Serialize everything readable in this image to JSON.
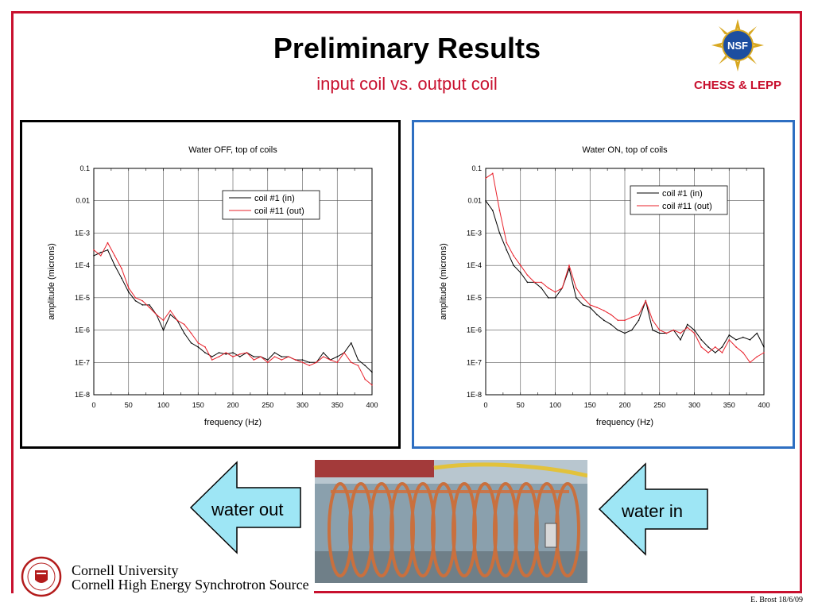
{
  "slide": {
    "title": "Preliminary Results",
    "subtitle": "input coil vs. output coil",
    "org": "CHESS & LEPP",
    "nsf_logo_text": "NSF",
    "footer": "E. Brost 18/6/09",
    "university_line1": "Cornell University",
    "university_line2": "Cornell High Energy Synchrotron Source",
    "seal_text": "CORNELL UNIVERSITY",
    "water_out_label": "water out",
    "water_in_label": "water in",
    "colors": {
      "accent_red": "#c8102e",
      "panel_blue_border": "#2e6fc2",
      "arrow_fill": "#9ee6f5",
      "series_black": "#000000",
      "series_red": "#e8202a"
    },
    "photo": {
      "description_icon": "copper-coil-photo"
    }
  },
  "chart_data": [
    {
      "type": "line",
      "title": "Water OFF, top of coils",
      "xlabel": "frequency (Hz)",
      "ylabel": "amplitude (microns)",
      "xlim": [
        0,
        400
      ],
      "ylim": [
        1e-08,
        0.1
      ],
      "yscale": "log",
      "xticks": [
        0,
        50,
        100,
        150,
        200,
        250,
        300,
        350,
        400
      ],
      "yticks": [
        0.1,
        0.01,
        0.001,
        0.0001,
        1e-05,
        1e-06,
        1e-07,
        1e-08
      ],
      "ytick_labels": [
        "0.1",
        "0.01",
        "1E-3",
        "1E-4",
        "1E-5",
        "1E-6",
        "1E-7",
        "1E-8"
      ],
      "grid": true,
      "legend": "top-right",
      "series": [
        {
          "name": "coil #1 (in)",
          "color": "#000000",
          "x": [
            0,
            10,
            20,
            30,
            40,
            50,
            60,
            70,
            80,
            90,
            100,
            110,
            120,
            130,
            140,
            150,
            160,
            170,
            180,
            190,
            200,
            210,
            220,
            230,
            240,
            250,
            260,
            270,
            280,
            290,
            300,
            310,
            320,
            330,
            340,
            350,
            360,
            370,
            380,
            390,
            400
          ],
          "y": [
            0.0002,
            0.00025,
            0.0003,
            0.0001,
            4e-05,
            1.5e-05,
            8e-06,
            6e-06,
            6e-06,
            3e-06,
            1e-06,
            3e-06,
            2e-06,
            8e-07,
            4e-07,
            3e-07,
            2e-07,
            1.5e-07,
            2e-07,
            1.8e-07,
            2e-07,
            1.5e-07,
            2e-07,
            1.5e-07,
            1.5e-07,
            1.2e-07,
            2e-07,
            1.5e-07,
            1.5e-07,
            1.2e-07,
            1.2e-07,
            1e-07,
            1e-07,
            2e-07,
            1.2e-07,
            1.5e-07,
            2e-07,
            4e-07,
            1.2e-07,
            8e-08,
            5e-08
          ]
        },
        {
          "name": "coil #11 (out)",
          "color": "#e8202a",
          "x": [
            0,
            10,
            20,
            30,
            40,
            50,
            60,
            70,
            80,
            90,
            100,
            110,
            120,
            130,
            140,
            150,
            160,
            170,
            180,
            190,
            200,
            210,
            220,
            230,
            240,
            250,
            260,
            270,
            280,
            290,
            300,
            310,
            320,
            330,
            340,
            350,
            360,
            370,
            380,
            390,
            400
          ],
          "y": [
            0.0003,
            0.0002,
            0.0005,
            0.0002,
            8e-05,
            2e-05,
            1e-05,
            8e-06,
            5e-06,
            3e-06,
            2e-06,
            4e-06,
            2e-06,
            1.5e-06,
            8e-07,
            4e-07,
            3e-07,
            1.2e-07,
            1.5e-07,
            2e-07,
            1.5e-07,
            1.8e-07,
            2e-07,
            1.2e-07,
            1.5e-07,
            1e-07,
            1.5e-07,
            1.2e-07,
            1.5e-07,
            1.2e-07,
            1e-07,
            8e-08,
            1e-07,
            1.5e-07,
            1.2e-07,
            1e-07,
            2e-07,
            1e-07,
            8e-08,
            3e-08,
            2e-08
          ]
        }
      ]
    },
    {
      "type": "line",
      "title": "Water ON, top of coils",
      "xlabel": "frequency (Hz)",
      "ylabel": "amplitude (microns)",
      "xlim": [
        0,
        400
      ],
      "ylim": [
        1e-08,
        0.1
      ],
      "yscale": "log",
      "xticks": [
        0,
        50,
        100,
        150,
        200,
        250,
        300,
        350,
        400
      ],
      "yticks": [
        0.1,
        0.01,
        0.001,
        0.0001,
        1e-05,
        1e-06,
        1e-07,
        1e-08
      ],
      "ytick_labels": [
        "0.1",
        "0.01",
        "1E-3",
        "1E-4",
        "1E-5",
        "1E-6",
        "1E-7",
        "1E-8"
      ],
      "grid": true,
      "legend": "top-right",
      "series": [
        {
          "name": "coil #1 (in)",
          "color": "#000000",
          "x": [
            0,
            10,
            20,
            30,
            40,
            50,
            60,
            70,
            80,
            90,
            100,
            110,
            120,
            130,
            140,
            150,
            160,
            170,
            180,
            190,
            200,
            210,
            220,
            230,
            240,
            250,
            260,
            270,
            280,
            290,
            300,
            310,
            320,
            330,
            340,
            350,
            360,
            370,
            380,
            390,
            400
          ],
          "y": [
            0.01,
            0.005,
            0.001,
            0.0003,
            0.0001,
            6e-05,
            3e-05,
            3e-05,
            2e-05,
            1e-05,
            1e-05,
            2e-05,
            8e-05,
            1e-05,
            6e-06,
            5e-06,
            3e-06,
            2e-06,
            1.5e-06,
            1e-06,
            8e-07,
            1e-06,
            2e-06,
            8e-06,
            1e-06,
            8e-07,
            8e-07,
            1e-06,
            5e-07,
            1.5e-06,
            1e-06,
            5e-07,
            3e-07,
            2e-07,
            3e-07,
            7e-07,
            5e-07,
            6e-07,
            5e-07,
            8e-07,
            3e-07
          ]
        },
        {
          "name": "coil #11 (out)",
          "color": "#e8202a",
          "x": [
            0,
            10,
            20,
            30,
            40,
            50,
            60,
            70,
            80,
            90,
            100,
            110,
            120,
            130,
            140,
            150,
            160,
            170,
            180,
            190,
            200,
            210,
            220,
            230,
            240,
            250,
            260,
            270,
            280,
            290,
            300,
            310,
            320,
            330,
            340,
            350,
            360,
            370,
            380,
            390,
            400
          ],
          "y": [
            0.05,
            0.07,
            0.005,
            0.0005,
            0.0002,
            0.0001,
            5e-05,
            3e-05,
            3e-05,
            2e-05,
            1.5e-05,
            2e-05,
            0.0001,
            2e-05,
            1e-05,
            6e-06,
            5e-06,
            4e-06,
            3e-06,
            2e-06,
            2e-06,
            2.5e-06,
            3e-06,
            8e-06,
            2e-06,
            1e-06,
            8e-07,
            1e-06,
            8e-07,
            1.2e-06,
            8e-07,
            3e-07,
            2e-07,
            3e-07,
            2e-07,
            5e-07,
            3e-07,
            2e-07,
            1e-07,
            1.5e-07,
            2e-07
          ]
        }
      ]
    }
  ]
}
